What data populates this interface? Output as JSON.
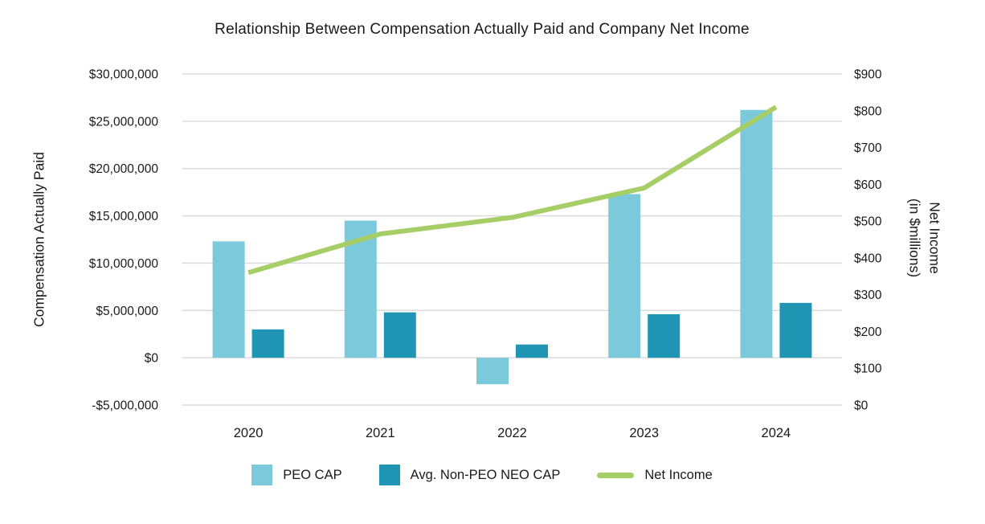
{
  "title": "Relationship Between Compensation Actually Paid and Company Net Income",
  "chart_data": {
    "type": "combo",
    "title": "Relationship Between Compensation Actually Paid and Company Net Income",
    "categories": [
      "2020",
      "2021",
      "2022",
      "2023",
      "2024"
    ],
    "series": [
      {
        "name": "PEO CAP",
        "type": "bar",
        "axis": "left",
        "color": "#7CC9DB",
        "values": [
          12300000,
          14500000,
          -2800000,
          17300000,
          26200000
        ]
      },
      {
        "name": "Avg. Non-PEO NEO CAP",
        "type": "bar",
        "axis": "left",
        "color": "#2094B3",
        "values": [
          3000000,
          4800000,
          1400000,
          4600000,
          5800000
        ]
      },
      {
        "name": "Net Income",
        "type": "line",
        "axis": "right",
        "color": "#A6CE67",
        "values": [
          360,
          465,
          510,
          590,
          810
        ]
      }
    ],
    "left_axis": {
      "label": "Compensation Actually Paid",
      "min": -5000000,
      "max": 30000000,
      "ticks": [
        {
          "label": "$30,000,000",
          "value": 30000000
        },
        {
          "label": "$25,000,000",
          "value": 25000000
        },
        {
          "label": "$20,000,000",
          "value": 20000000
        },
        {
          "label": "$15,000,000",
          "value": 15000000
        },
        {
          "label": "$10,000,000",
          "value": 10000000
        },
        {
          "label": "$5,000,000",
          "value": 5000000
        },
        {
          "label": "$0",
          "value": 0
        },
        {
          "label": "-$5,000,000",
          "value": -5000000
        }
      ]
    },
    "right_axis": {
      "label_line1": "Net Income",
      "label_line2": "(in $millions)",
      "min": 0,
      "max": 900,
      "ticks": [
        {
          "label": "$900",
          "value": 900
        },
        {
          "label": "$800",
          "value": 800
        },
        {
          "label": "$700",
          "value": 700
        },
        {
          "label": "$600",
          "value": 600
        },
        {
          "label": "$500",
          "value": 500
        },
        {
          "label": "$400",
          "value": 400
        },
        {
          "label": "$300",
          "value": 300
        },
        {
          "label": "$200",
          "value": 200
        },
        {
          "label": "$100",
          "value": 100
        },
        {
          "label": "$0",
          "value": 0
        }
      ]
    },
    "grid": true,
    "grid_color": "#DBDBDB",
    "background_color": "#FFFFFF",
    "text_color": "#1A1A1A",
    "legend_position": "bottom"
  }
}
